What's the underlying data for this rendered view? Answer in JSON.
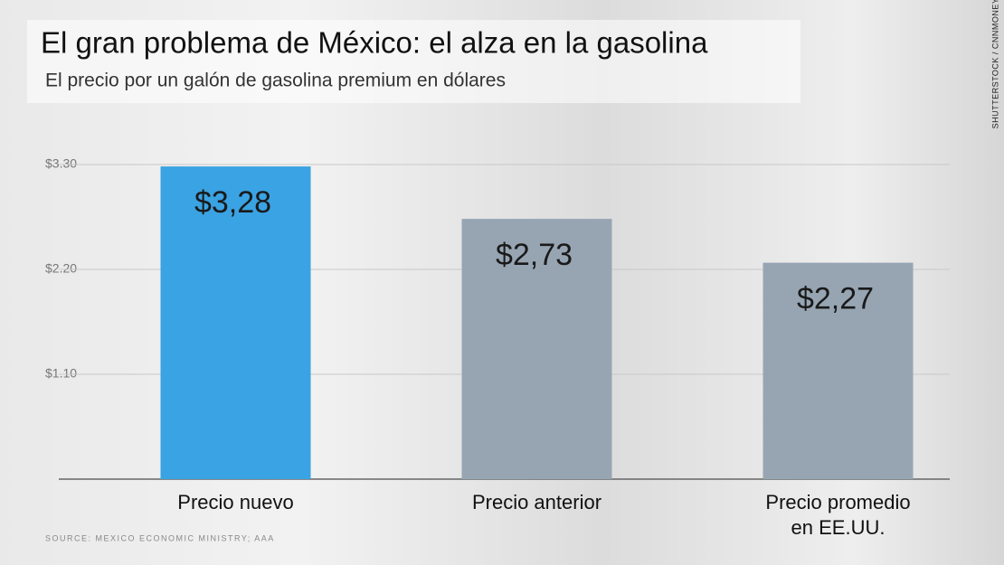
{
  "chart_data": {
    "type": "bar",
    "title": "El gran problema de México: el alza en la gasolina",
    "subtitle": "El precio por un galón de gasolina premium en dólares",
    "categories": [
      "Precio nuevo",
      "Precio anterior",
      "Precio promedio en EE.UU."
    ],
    "values": [
      3.28,
      2.73,
      2.27
    ],
    "value_labels": [
      "$3,28",
      "$2,73",
      "$2,27"
    ],
    "colors": [
      "#3aa3e3",
      "#97a5b3",
      "#97a5b3"
    ],
    "ylim": [
      0,
      3.3
    ],
    "yticks": [
      {
        "value": 1.1,
        "label": "$1.10"
      },
      {
        "value": 2.2,
        "label": "$2.20"
      },
      {
        "value": 3.3,
        "label": "$3.30"
      }
    ],
    "grid": true,
    "source": "SOURCE: MEXICO ECONOMIC MINISTRY; AAA",
    "credit": "SHUTTERSTOCK / CNNMONEY"
  }
}
